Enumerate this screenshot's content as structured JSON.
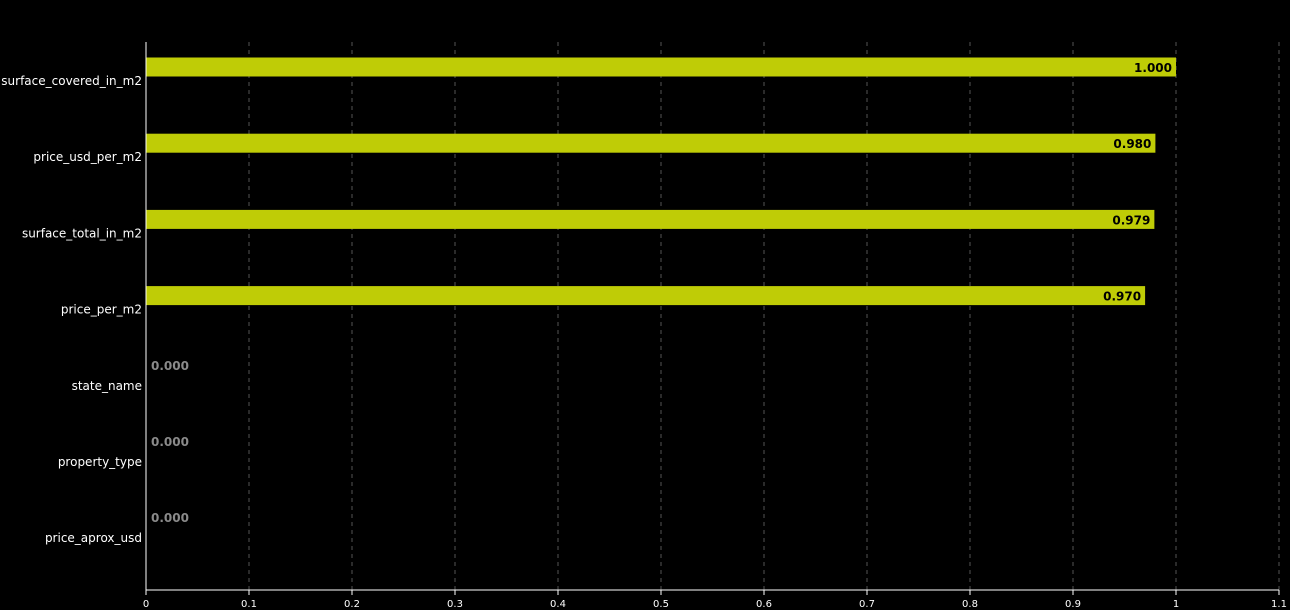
{
  "chart_data": {
    "type": "bar",
    "orientation": "horizontal",
    "categories": [
      "surface_covered_in_m2",
      "price_usd_per_m2",
      "surface_total_in_m2",
      "price_per_m2",
      "state_name",
      "property_type",
      "price_aprox_usd"
    ],
    "values": [
      1.0,
      0.98,
      0.979,
      0.97,
      0.0,
      0.0,
      0.0
    ],
    "value_labels": [
      "1.000",
      "0.980",
      "0.979",
      "0.970",
      "0.000",
      "0.000",
      "0.000"
    ],
    "x_ticks": [
      "0",
      "0.1",
      "0.2",
      "0.3",
      "0.4",
      "0.5",
      "0.6",
      "0.7",
      "0.8",
      "0.9",
      "1",
      "1.1"
    ],
    "xlim": [
      0,
      1.1
    ],
    "title": "",
    "xlabel": "",
    "ylabel": "",
    "grid": "vertical-dashed",
    "colors": {
      "bar": "#bfcc06",
      "background": "#000000",
      "text": "#ffffff",
      "grid": "#555555",
      "label_inside": "#000000",
      "label_zero": "#8a8a8a"
    }
  }
}
